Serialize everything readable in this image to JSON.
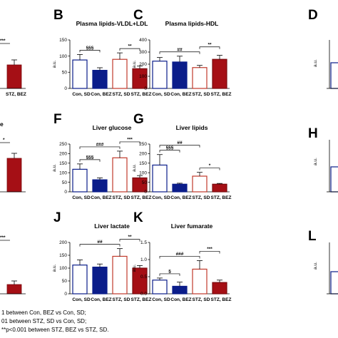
{
  "colors": {
    "con_sd": "#ffffff",
    "con_bez": "#0b1d8a",
    "stz_sd": "#ffffff",
    "stz_bez": "#a50f15",
    "outline_blue": "#0b1d8a",
    "outline_red": "#c0392b"
  },
  "footnotes": [
    "1 between Con, BEZ vs Con, SD;",
    "01 between STZ, SD vs Con, SD;",
    "**p<0.001 between STZ, BEZ vs STZ, SD."
  ],
  "chart_data": [
    {
      "id": "B",
      "letter": "B",
      "type": "bar",
      "title": "Plasma lipids-VLDL+LDL",
      "ylabel": "a.u.",
      "categories": [
        "Con, SD",
        "Con, BEZ",
        "STZ, SD",
        "STZ, BEZ"
      ],
      "values": [
        88,
        56,
        90,
        61
      ],
      "errors": [
        17,
        8,
        20,
        8
      ],
      "ylim": [
        0,
        150
      ],
      "yticks": [
        0,
        50,
        100,
        150
      ],
      "sig": [
        {
          "from": 0,
          "to": 1,
          "label": "§§§"
        },
        {
          "from": 2,
          "to": 3,
          "label": "**"
        }
      ]
    },
    {
      "id": "C",
      "letter": "C",
      "type": "bar",
      "title": "Plasma lipids-HDL",
      "ylabel": "a.u.",
      "categories": [
        "Con, SD",
        "Con, BEZ",
        "STZ, SD",
        "STZ, BEZ"
      ],
      "values": [
        225,
        218,
        172,
        240
      ],
      "errors": [
        30,
        48,
        18,
        33
      ],
      "ylim": [
        0,
        400
      ],
      "yticks": [
        0,
        100,
        200,
        300,
        400
      ],
      "sig": [
        {
          "from": 0,
          "to": 2,
          "label": "##"
        },
        {
          "from": 2,
          "to": 3,
          "label": "**"
        }
      ]
    },
    {
      "id": "F",
      "letter": "F",
      "type": "bar",
      "title": "Liver glucose",
      "ylabel": "a.u.",
      "categories": [
        "Con, SD",
        "Con, BEZ",
        "STZ, SD",
        "STZ, BEZ"
      ],
      "values": [
        118,
        63,
        178,
        73
      ],
      "errors": [
        28,
        10,
        35,
        12
      ],
      "ylim": [
        0,
        250
      ],
      "yticks": [
        0,
        50,
        100,
        150,
        200,
        250
      ],
      "sig": [
        {
          "from": 0,
          "to": 1,
          "label": "§§§"
        },
        {
          "from": 0,
          "to": 2,
          "label": "###"
        },
        {
          "from": 2,
          "to": 3,
          "label": "***"
        }
      ]
    },
    {
      "id": "G",
      "letter": "G",
      "type": "bar",
      "title": "Liver lipids",
      "ylabel": "a.u.",
      "categories": [
        "Con, SD",
        "Con, BEZ",
        "STZ, SD",
        "STZ, BEZ"
      ],
      "values": [
        140,
        40,
        82,
        40
      ],
      "errors": [
        55,
        5,
        20,
        4
      ],
      "ylim": [
        0,
        250
      ],
      "yticks": [
        0,
        50,
        100,
        150,
        200,
        250
      ],
      "sig": [
        {
          "from": 0,
          "to": 1,
          "label": "§§§"
        },
        {
          "from": 0,
          "to": 2,
          "label": "##"
        },
        {
          "from": 2,
          "to": 3,
          "label": "*"
        }
      ]
    },
    {
      "id": "J",
      "letter": "J",
      "type": "bar",
      "title": "Liver lactate",
      "ylabel": "a.u.",
      "categories": [
        "Con, SD",
        "Con, BEZ",
        "STZ, SD",
        "STZ, BEZ"
      ],
      "values": [
        112,
        104,
        146,
        100
      ],
      "errors": [
        20,
        12,
        30,
        10
      ],
      "ylim": [
        0,
        200
      ],
      "yticks": [
        0,
        50,
        100,
        150,
        200
      ],
      "sig": [
        {
          "from": 0,
          "to": 2,
          "label": "##"
        },
        {
          "from": 2,
          "to": 3,
          "label": "**"
        }
      ]
    },
    {
      "id": "K",
      "letter": "K",
      "type": "bar",
      "title": "Liver fumarate",
      "ylabel": "a.u.",
      "categories": [
        "Con, SD",
        "Con, BEZ",
        "STZ, SD",
        "STZ, BEZ"
      ],
      "values": [
        0.4,
        0.22,
        0.72,
        0.33
      ],
      "errors": [
        0.06,
        0.12,
        0.25,
        0.07
      ],
      "ylim": [
        0,
        1.5
      ],
      "yticks": [
        0.0,
        0.5,
        1.0,
        1.5
      ],
      "sig": [
        {
          "from": 0,
          "to": 1,
          "label": "§"
        },
        {
          "from": 0,
          "to": 2,
          "label": "###"
        },
        {
          "from": 2,
          "to": 3,
          "label": "***"
        }
      ]
    }
  ],
  "partial_panels": {
    "left_row1": {
      "categories": [
        "STZ, BEZ"
      ],
      "sig": [
        "***"
      ]
    },
    "left_row2": {
      "title_tail": "e",
      "sig": [
        "*"
      ]
    },
    "left_row3": {
      "sig": [
        "***"
      ]
    },
    "right_letters": [
      "D",
      "H",
      "L"
    ],
    "right_ylabel": "a.u."
  }
}
